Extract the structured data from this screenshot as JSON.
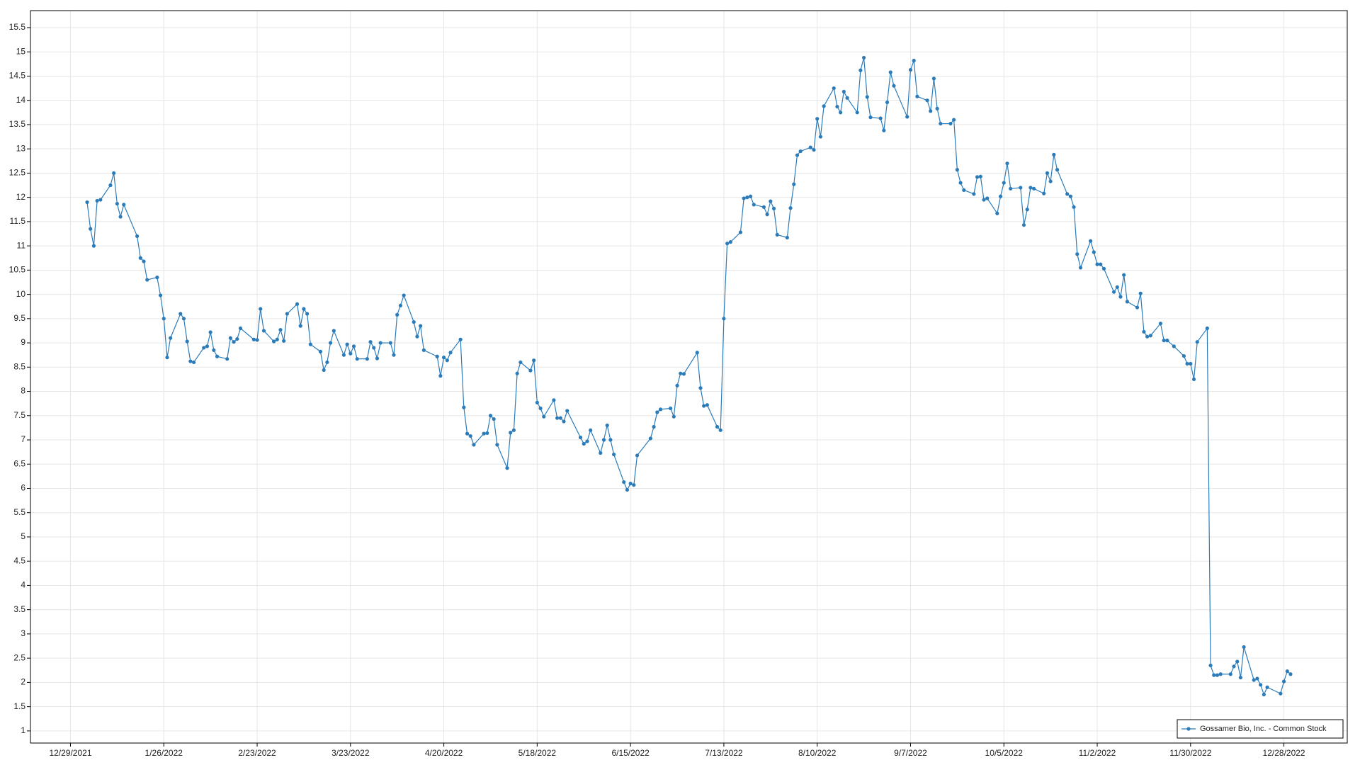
{
  "chart_data": {
    "type": "line",
    "x": [
      "2022-01-03",
      "2022-01-04",
      "2022-01-05",
      "2022-01-06",
      "2022-01-07",
      "2022-01-10",
      "2022-01-11",
      "2022-01-12",
      "2022-01-13",
      "2022-01-14",
      "2022-01-18",
      "2022-01-19",
      "2022-01-20",
      "2022-01-21",
      "2022-01-24",
      "2022-01-25",
      "2022-01-26",
      "2022-01-27",
      "2022-01-28",
      "2022-01-31",
      "2022-02-01",
      "2022-02-02",
      "2022-02-03",
      "2022-02-04",
      "2022-02-07",
      "2022-02-08",
      "2022-02-09",
      "2022-02-10",
      "2022-02-11",
      "2022-02-14",
      "2022-02-15",
      "2022-02-16",
      "2022-02-17",
      "2022-02-18",
      "2022-02-22",
      "2022-02-23",
      "2022-02-24",
      "2022-02-25",
      "2022-02-28",
      "2022-03-01",
      "2022-03-02",
      "2022-03-03",
      "2022-03-04",
      "2022-03-07",
      "2022-03-08",
      "2022-03-09",
      "2022-03-10",
      "2022-03-11",
      "2022-03-14",
      "2022-03-15",
      "2022-03-16",
      "2022-03-17",
      "2022-03-18",
      "2022-03-21",
      "2022-03-22",
      "2022-03-23",
      "2022-03-24",
      "2022-03-25",
      "2022-03-28",
      "2022-03-29",
      "2022-03-30",
      "2022-03-31",
      "2022-04-01",
      "2022-04-04",
      "2022-04-05",
      "2022-04-06",
      "2022-04-07",
      "2022-04-08",
      "2022-04-11",
      "2022-04-12",
      "2022-04-13",
      "2022-04-14",
      "2022-04-18",
      "2022-04-19",
      "2022-04-20",
      "2022-04-21",
      "2022-04-22",
      "2022-04-25",
      "2022-04-26",
      "2022-04-27",
      "2022-04-28",
      "2022-04-29",
      "2022-05-02",
      "2022-05-03",
      "2022-05-04",
      "2022-05-05",
      "2022-05-06",
      "2022-05-09",
      "2022-05-10",
      "2022-05-11",
      "2022-05-12",
      "2022-05-13",
      "2022-05-16",
      "2022-05-17",
      "2022-05-18",
      "2022-05-19",
      "2022-05-20",
      "2022-05-23",
      "2022-05-24",
      "2022-05-25",
      "2022-05-26",
      "2022-05-27",
      "2022-05-31",
      "2022-06-01",
      "2022-06-02",
      "2022-06-03",
      "2022-06-06",
      "2022-06-07",
      "2022-06-08",
      "2022-06-09",
      "2022-06-10",
      "2022-06-13",
      "2022-06-14",
      "2022-06-15",
      "2022-06-16",
      "2022-06-17",
      "2022-06-21",
      "2022-06-22",
      "2022-06-23",
      "2022-06-24",
      "2022-06-27",
      "2022-06-28",
      "2022-06-29",
      "2022-06-30",
      "2022-07-01",
      "2022-07-05",
      "2022-07-06",
      "2022-07-07",
      "2022-07-08",
      "2022-07-11",
      "2022-07-12",
      "2022-07-13",
      "2022-07-14",
      "2022-07-15",
      "2022-07-18",
      "2022-07-19",
      "2022-07-20",
      "2022-07-21",
      "2022-07-22",
      "2022-07-25",
      "2022-07-26",
      "2022-07-27",
      "2022-07-28",
      "2022-07-29",
      "2022-08-01",
      "2022-08-02",
      "2022-08-03",
      "2022-08-04",
      "2022-08-05",
      "2022-08-08",
      "2022-08-09",
      "2022-08-10",
      "2022-08-11",
      "2022-08-12",
      "2022-08-15",
      "2022-08-16",
      "2022-08-17",
      "2022-08-18",
      "2022-08-19",
      "2022-08-22",
      "2022-08-23",
      "2022-08-24",
      "2022-08-25",
      "2022-08-26",
      "2022-08-29",
      "2022-08-30",
      "2022-08-31",
      "2022-09-01",
      "2022-09-02",
      "2022-09-06",
      "2022-09-07",
      "2022-09-08",
      "2022-09-09",
      "2022-09-12",
      "2022-09-13",
      "2022-09-14",
      "2022-09-15",
      "2022-09-16",
      "2022-09-19",
      "2022-09-20",
      "2022-09-21",
      "2022-09-22",
      "2022-09-23",
      "2022-09-26",
      "2022-09-27",
      "2022-09-28",
      "2022-09-29",
      "2022-09-30",
      "2022-10-03",
      "2022-10-04",
      "2022-10-05",
      "2022-10-06",
      "2022-10-07",
      "2022-10-10",
      "2022-10-11",
      "2022-10-12",
      "2022-10-13",
      "2022-10-14",
      "2022-10-17",
      "2022-10-18",
      "2022-10-19",
      "2022-10-20",
      "2022-10-21",
      "2022-10-24",
      "2022-10-25",
      "2022-10-26",
      "2022-10-27",
      "2022-10-28",
      "2022-10-31",
      "2022-11-01",
      "2022-11-02",
      "2022-11-03",
      "2022-11-04",
      "2022-11-07",
      "2022-11-08",
      "2022-11-09",
      "2022-11-10",
      "2022-11-11",
      "2022-11-14",
      "2022-11-15",
      "2022-11-16",
      "2022-11-17",
      "2022-11-18",
      "2022-11-21",
      "2022-11-22",
      "2022-11-23",
      "2022-11-25",
      "2022-11-28",
      "2022-11-29",
      "2022-11-30",
      "2022-12-01",
      "2022-12-02",
      "2022-12-05",
      "2022-12-06",
      "2022-12-07",
      "2022-12-08",
      "2022-12-09",
      "2022-12-12",
      "2022-12-13",
      "2022-12-14",
      "2022-12-15",
      "2022-12-16",
      "2022-12-19",
      "2022-12-20",
      "2022-12-21",
      "2022-12-22",
      "2022-12-23",
      "2022-12-27",
      "2022-12-28",
      "2022-12-29",
      "2022-12-30"
    ],
    "series": [
      {
        "name": "Gossamer Bio, Inc. - Common Stock",
        "color": "#2b7bb9",
        "values": [
          11.9,
          11.35,
          11.0,
          11.93,
          11.95,
          12.25,
          12.5,
          11.87,
          11.6,
          11.85,
          11.2,
          10.75,
          10.68,
          10.3,
          10.35,
          9.98,
          9.5,
          8.7,
          9.1,
          9.6,
          9.5,
          9.03,
          8.62,
          8.6,
          8.9,
          8.93,
          9.22,
          8.85,
          8.72,
          8.67,
          9.1,
          9.02,
          9.08,
          9.3,
          9.07,
          9.06,
          9.7,
          9.25,
          9.03,
          9.07,
          9.27,
          9.04,
          9.6,
          9.8,
          9.35,
          9.7,
          9.6,
          8.97,
          8.82,
          8.44,
          8.6,
          9.0,
          9.25,
          8.75,
          8.97,
          8.78,
          8.93,
          8.67,
          8.67,
          9.02,
          8.9,
          8.68,
          9.0,
          9.0,
          8.75,
          9.58,
          9.77,
          9.98,
          9.43,
          9.13,
          9.35,
          8.85,
          8.72,
          8.32,
          8.7,
          8.64,
          8.8,
          9.07,
          7.67,
          7.13,
          7.08,
          6.9,
          7.13,
          7.14,
          7.5,
          7.43,
          6.9,
          6.42,
          7.15,
          7.2,
          8.37,
          8.6,
          8.43,
          8.64,
          7.77,
          7.65,
          7.48,
          7.82,
          7.45,
          7.45,
          7.38,
          7.6,
          7.05,
          6.92,
          6.97,
          7.2,
          6.73,
          7.0,
          7.3,
          7.0,
          6.7,
          6.13,
          5.97,
          6.1,
          6.07,
          6.68,
          7.03,
          7.27,
          7.57,
          7.63,
          7.65,
          7.48,
          8.12,
          8.37,
          8.36,
          8.8,
          8.07,
          7.7,
          7.72,
          7.27,
          7.2,
          9.5,
          11.05,
          11.08,
          11.28,
          11.98,
          12.0,
          12.02,
          11.85,
          11.8,
          11.65,
          11.92,
          11.77,
          11.23,
          11.17,
          11.78,
          12.27,
          12.87,
          12.95,
          13.03,
          12.98,
          13.62,
          13.25,
          13.88,
          14.25,
          13.87,
          13.75,
          14.18,
          14.05,
          13.75,
          14.62,
          14.88,
          14.07,
          13.65,
          13.63,
          13.38,
          13.96,
          14.58,
          14.3,
          13.66,
          14.63,
          14.82,
          14.08,
          14.0,
          13.78,
          14.45,
          13.83,
          13.52,
          13.52,
          13.6,
          12.57,
          12.3,
          12.15,
          12.07,
          12.42,
          12.43,
          11.95,
          11.98,
          11.67,
          12.02,
          12.3,
          12.7,
          12.18,
          12.2,
          11.43,
          11.75,
          12.2,
          12.18,
          12.08,
          12.5,
          12.33,
          12.88,
          12.57,
          12.07,
          12.02,
          11.8,
          10.83,
          10.55,
          11.1,
          10.87,
          10.62,
          10.62,
          10.53,
          10.05,
          10.15,
          9.95,
          10.4,
          9.85,
          9.73,
          10.02,
          9.23,
          9.13,
          9.15,
          9.4,
          9.05,
          9.05,
          8.93,
          8.73,
          8.57,
          8.57,
          8.25,
          9.02,
          9.3,
          2.35,
          2.15,
          2.15,
          2.17,
          2.17,
          2.33,
          2.43,
          2.1,
          2.73,
          2.05,
          2.08,
          1.95,
          1.75,
          1.9,
          1.77,
          2.02,
          2.23,
          2.17
        ]
      }
    ],
    "xlim": [
      "2021-12-17",
      "2023-01-16"
    ],
    "xticks": [
      {
        "value": "2021-12-29",
        "label": "12/29/2021"
      },
      {
        "value": "2022-01-26",
        "label": "1/26/2022"
      },
      {
        "value": "2022-02-23",
        "label": "2/23/2022"
      },
      {
        "value": "2022-03-23",
        "label": "3/23/2022"
      },
      {
        "value": "2022-04-20",
        "label": "4/20/2022"
      },
      {
        "value": "2022-05-18",
        "label": "5/18/2022"
      },
      {
        "value": "2022-06-15",
        "label": "6/15/2022"
      },
      {
        "value": "2022-07-13",
        "label": "7/13/2022"
      },
      {
        "value": "2022-08-10",
        "label": "8/10/2022"
      },
      {
        "value": "2022-09-07",
        "label": "9/7/2022"
      },
      {
        "value": "2022-10-05",
        "label": "10/5/2022"
      },
      {
        "value": "2022-11-02",
        "label": "11/2/2022"
      },
      {
        "value": "2022-11-30",
        "label": "11/30/2022"
      },
      {
        "value": "2022-12-28",
        "label": "12/28/2022"
      }
    ],
    "ylim": [
      0.75,
      15.85
    ],
    "yticks": [
      1,
      1.5,
      2,
      2.5,
      3,
      3.5,
      4,
      4.5,
      5,
      5.5,
      6,
      6.5,
      7,
      7.5,
      8,
      8.5,
      9,
      9.5,
      10,
      10.5,
      11,
      11.5,
      12,
      12.5,
      13,
      13.5,
      14,
      14.5,
      15,
      15.5
    ],
    "grid": true,
    "legend": "lower right",
    "markers": true
  }
}
